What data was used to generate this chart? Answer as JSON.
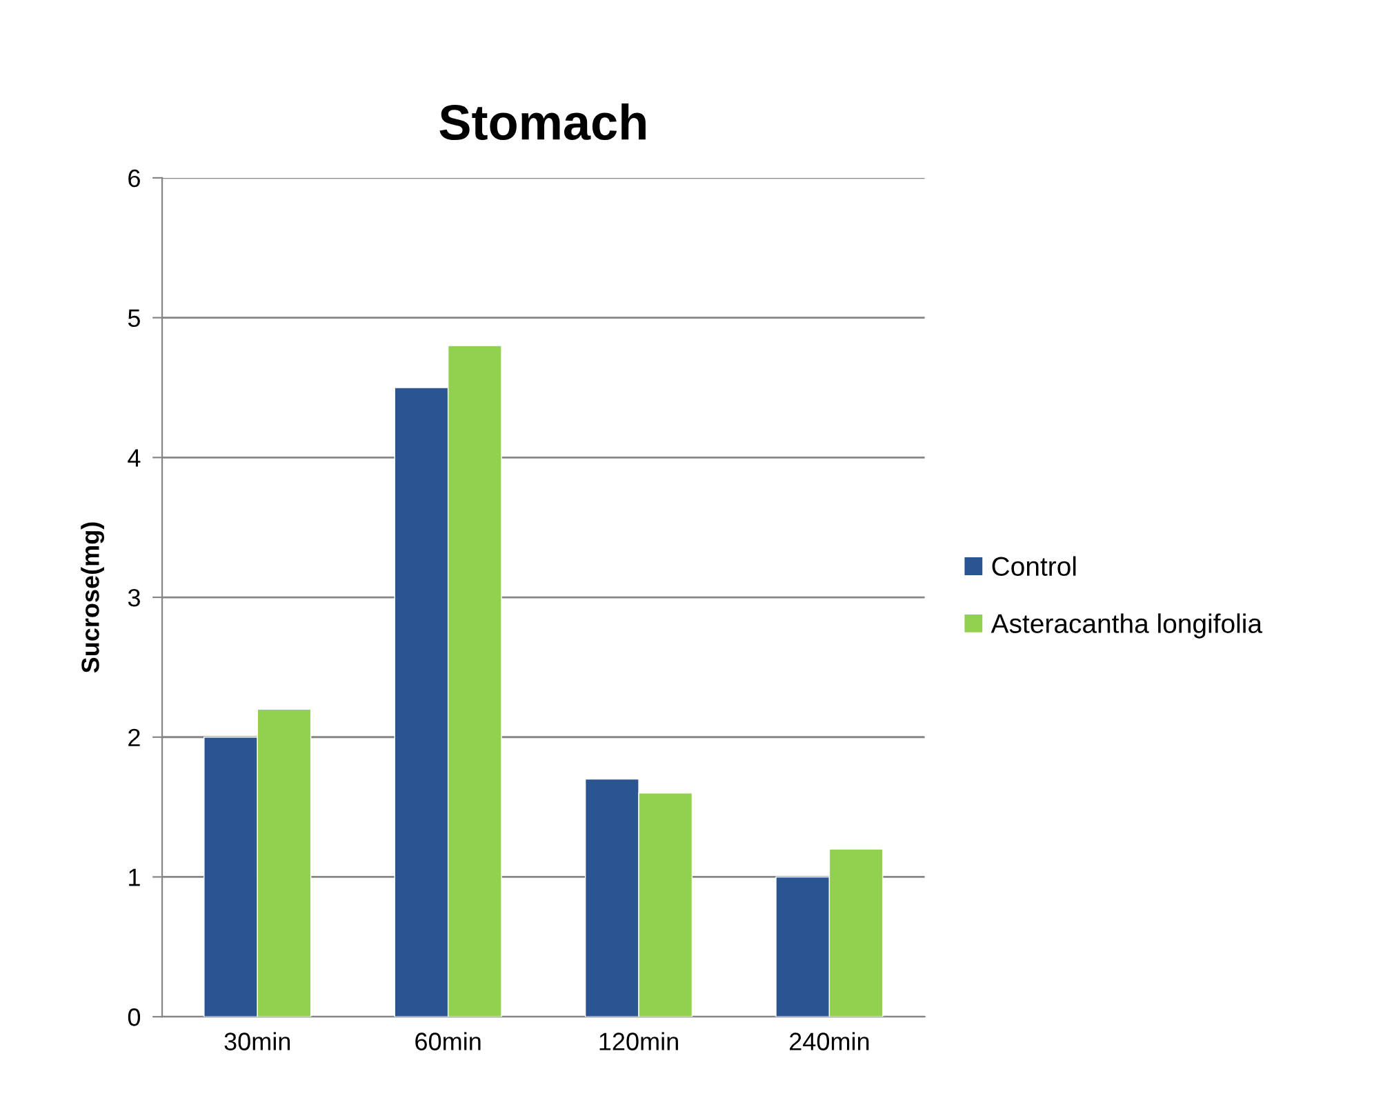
{
  "chart_data": {
    "type": "bar",
    "title": "Stomach",
    "ylabel": "Sucrose(mg)",
    "categories": [
      "30min",
      "60min",
      "120min",
      "240min"
    ],
    "series": [
      {
        "name": "Control",
        "color": "#2a5590",
        "values": [
          2.0,
          4.5,
          1.7,
          1.0
        ]
      },
      {
        "name": "Asteracantha longifolia",
        "color": "#92d050",
        "values": [
          2.2,
          4.8,
          1.6,
          1.2
        ]
      }
    ],
    "ylim": [
      0,
      6
    ],
    "yticks": [
      0,
      1,
      2,
      3,
      4,
      5,
      6
    ],
    "grid": "y",
    "legend": "right"
  }
}
